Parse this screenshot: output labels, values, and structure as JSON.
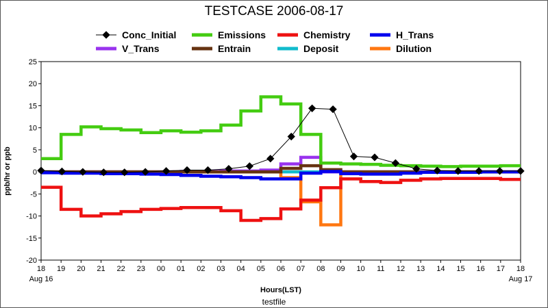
{
  "chart_data": {
    "type": "line",
    "title": "TESTCASE 2006-08-17",
    "xlabel": "Hours(LST)",
    "ylabel": "ppb/hr or ppb",
    "footer": "testfile",
    "ylim": [
      -20,
      25
    ],
    "yticks": [
      "-20",
      "-15",
      "-10",
      "-5",
      "0",
      "5",
      "10",
      "15",
      "20",
      "25"
    ],
    "xtick_labels": [
      "18",
      "19",
      "20",
      "21",
      "22",
      "23",
      "00",
      "01",
      "02",
      "03",
      "04",
      "05",
      "06",
      "07",
      "08",
      "09",
      "10",
      "11",
      "12",
      "13",
      "14",
      "15",
      "16",
      "17",
      "18"
    ],
    "x_date_labels": {
      "start": "Aug 16",
      "end": "Aug 17"
    },
    "grid": false,
    "legend_placement": "top",
    "series": [
      {
        "name": "Conc_Initial",
        "color": "#000000",
        "style": "line-marker",
        "values": [
          0.3,
          0.1,
          0.0,
          -0.1,
          -0.1,
          0.0,
          0.2,
          0.4,
          0.4,
          0.7,
          1.3,
          3.0,
          8.0,
          14.4,
          14.2,
          3.5,
          3.3,
          2.0,
          0.7,
          0.3,
          0.2,
          0.2,
          0.2,
          0.2
        ]
      },
      {
        "name": "Emissions",
        "color": "#44cc11",
        "style": "step",
        "values": [
          3.0,
          8.5,
          10.2,
          9.8,
          9.5,
          8.9,
          9.3,
          9.0,
          9.3,
          10.6,
          13.8,
          17.0,
          15.4,
          8.5,
          2.0,
          1.8,
          1.7,
          1.5,
          1.4,
          1.3,
          1.2,
          1.3,
          1.3,
          1.4
        ]
      },
      {
        "name": "Chemistry",
        "color": "#ee1111",
        "style": "step",
        "values": [
          -3.5,
          -8.5,
          -10.0,
          -9.5,
          -9.0,
          -8.5,
          -8.3,
          -8.1,
          -8.1,
          -8.8,
          -11.0,
          -10.6,
          -8.4,
          -6.4,
          -3.6,
          -1.6,
          -2.2,
          -2.4,
          -1.9,
          -1.6,
          -1.5,
          -1.5,
          -1.5,
          -1.7
        ]
      },
      {
        "name": "H_Trans",
        "color": "#0000ee",
        "style": "step",
        "values": [
          -0.2,
          -0.3,
          -0.3,
          -0.4,
          -0.4,
          -0.5,
          -0.6,
          -0.8,
          -1.0,
          -1.1,
          -1.3,
          -1.6,
          -1.6,
          -0.3,
          0.1,
          -0.4,
          -0.5,
          -0.5,
          -0.3,
          -0.1,
          -0.1,
          -0.1,
          0.0,
          0.0
        ]
      },
      {
        "name": "V_Trans",
        "color": "#9933ee",
        "style": "step",
        "values": [
          0.0,
          0.0,
          0.0,
          0.0,
          0.0,
          0.0,
          0.0,
          0.1,
          0.1,
          0.2,
          0.2,
          0.4,
          1.8,
          3.3,
          0.0,
          0.0,
          0.0,
          0.0,
          0.0,
          0.0,
          0.0,
          0.0,
          0.0,
          0.0
        ]
      },
      {
        "name": "Entrain",
        "color": "#663311",
        "style": "step",
        "values": [
          0.0,
          0.0,
          0.0,
          0.0,
          0.0,
          0.0,
          0.0,
          0.0,
          0.0,
          0.0,
          0.0,
          0.0,
          0.8,
          1.4,
          0.5,
          0.0,
          0.0,
          0.0,
          0.0,
          0.0,
          0.0,
          0.0,
          0.0,
          0.0
        ]
      },
      {
        "name": "Deposit",
        "color": "#11bbcc",
        "style": "step",
        "values": [
          0.0,
          0.0,
          0.0,
          0.0,
          0.0,
          0.0,
          0.0,
          0.0,
          0.0,
          0.0,
          0.0,
          0.0,
          0.0,
          0.0,
          0.0,
          0.0,
          0.0,
          0.0,
          0.0,
          0.0,
          0.0,
          0.0,
          0.0,
          0.0
        ]
      },
      {
        "name": "Dilution",
        "color": "#ff7711",
        "style": "step",
        "values": [
          0.0,
          0.0,
          0.0,
          0.0,
          0.0,
          0.0,
          0.0,
          0.0,
          0.0,
          0.0,
          0.0,
          0.0,
          -1.3,
          -6.8,
          -12.0,
          0.0,
          0.0,
          0.0,
          0.0,
          0.0,
          0.0,
          0.0,
          0.0,
          0.0
        ]
      }
    ]
  }
}
